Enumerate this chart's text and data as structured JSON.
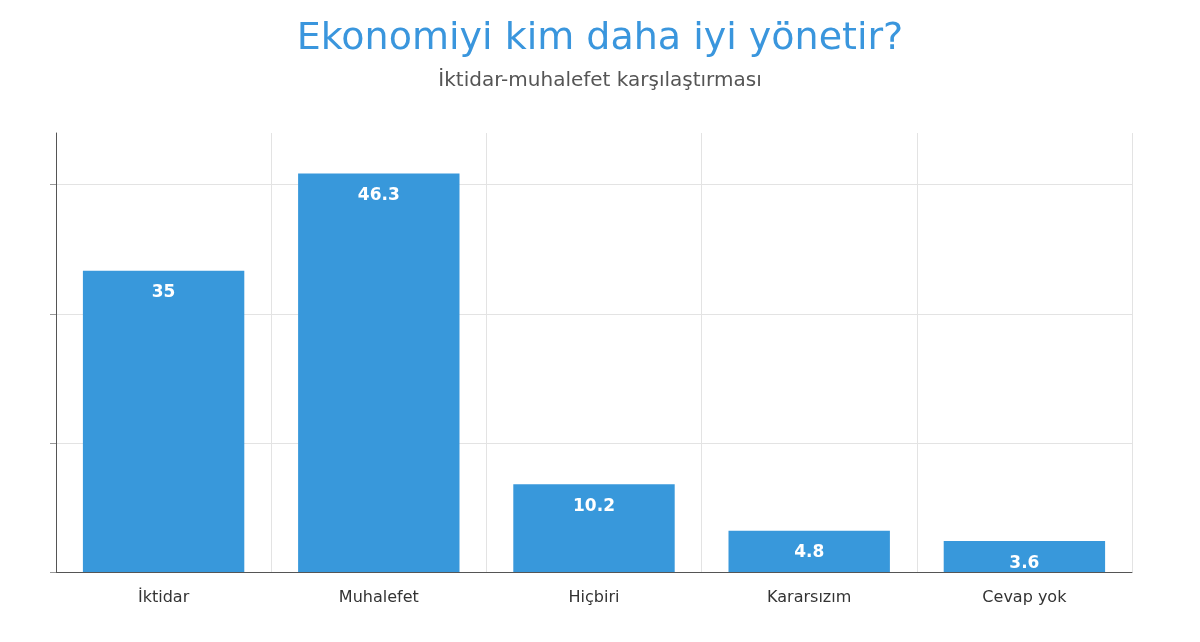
{
  "chart_data": {
    "type": "bar",
    "title": "Ekonomiyi kim daha iyi yönetir?",
    "subtitle": "İktidar-muhalefet karşılaştırması",
    "categories": [
      "İktidar",
      "Muhalefet",
      "Hiçbiri",
      "Kararsızım",
      "Cevap yok"
    ],
    "values": [
      35,
      46.3,
      10.2,
      4.8,
      3.6
    ],
    "color": "#3898db",
    "ylim": [
      0,
      51
    ],
    "yticks": [
      {
        "value": 0,
        "label": null
      },
      {
        "value": 15,
        "label": null
      },
      {
        "value": 30,
        "label": null
      },
      {
        "value": 45,
        "label": null
      }
    ],
    "grid": true,
    "data_labels": true,
    "tick_labels": "x"
  }
}
